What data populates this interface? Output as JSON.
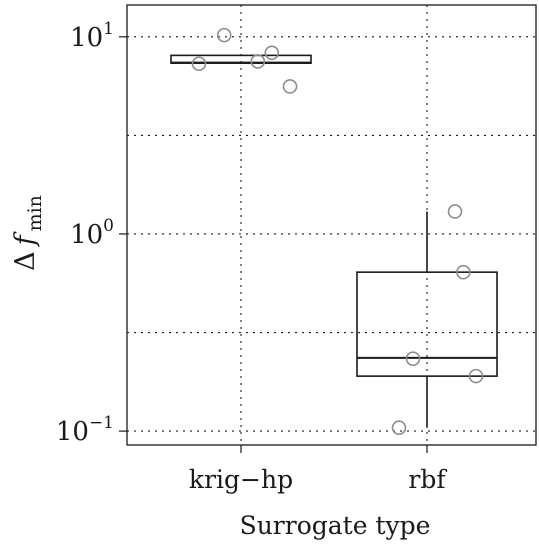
{
  "chart_data": {
    "type": "box",
    "title": "",
    "xlabel": "Surrogate type",
    "ylabel": {
      "base": "Δ",
      "var": "f",
      "sub": "min"
    },
    "yscale": "log10",
    "ylim": [
      0.085,
      14.5
    ],
    "grid": true,
    "categories": [
      "krig−hp",
      "rbf"
    ],
    "y_ticks": [
      {
        "value": 0.1,
        "base": "10",
        "exp": "−1"
      },
      {
        "value": 1,
        "base": "10",
        "exp": "0"
      },
      {
        "value": 10,
        "base": "10",
        "exp": "1"
      }
    ],
    "minor_grid_values": [
      0.316,
      3.16
    ],
    "boxes": [
      {
        "category": "krig−hp",
        "q1": 7.35,
        "median": 7.4,
        "q3": 8.05,
        "whisker_low": 7.35,
        "whisker_high": 8.05
      },
      {
        "category": "rbf",
        "q1": 0.19,
        "median": 0.235,
        "q3": 0.64,
        "whisker_low": 0.104,
        "whisker_high": 1.3
      }
    ],
    "points": [
      {
        "category": "krig−hp",
        "x_jitter": -0.3,
        "y": 7.3
      },
      {
        "category": "krig−hp",
        "x_jitter": -0.12,
        "y": 10.2
      },
      {
        "category": "krig−hp",
        "x_jitter": 0.12,
        "y": 7.5
      },
      {
        "category": "krig−hp",
        "x_jitter": 0.22,
        "y": 8.3
      },
      {
        "category": "krig−hp",
        "x_jitter": 0.35,
        "y": 5.6
      },
      {
        "category": "rbf",
        "x_jitter": -0.2,
        "y": 0.104
      },
      {
        "category": "rbf",
        "x_jitter": -0.1,
        "y": 0.233
      },
      {
        "category": "rbf",
        "x_jitter": 0.2,
        "y": 1.3
      },
      {
        "category": "rbf",
        "x_jitter": 0.26,
        "y": 0.64
      },
      {
        "category": "rbf",
        "x_jitter": 0.35,
        "y": 0.19
      }
    ]
  }
}
